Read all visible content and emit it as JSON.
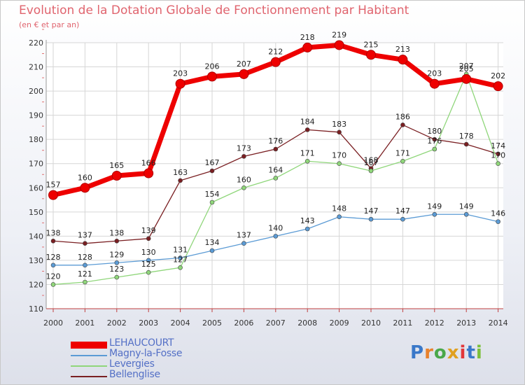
{
  "chart_data": {
    "type": "line",
    "title": "Evolution de la Dotation Globale de Fonctionnement par Habitant",
    "subtitle": "(en € et par an)",
    "categories": [
      "2000",
      "2001",
      "2002",
      "2003",
      "2004",
      "2005",
      "2006",
      "2007",
      "2008",
      "2009",
      "2010",
      "2011",
      "2012",
      "2013",
      "2014"
    ],
    "ylim": [
      110,
      220
    ],
    "yticks": [
      110,
      120,
      130,
      140,
      150,
      160,
      170,
      180,
      190,
      200,
      210,
      220
    ],
    "grid": true,
    "legend_position": "bottom-left",
    "series": [
      {
        "name": "Bellenglise",
        "color": "#7a1f22",
        "values": [
          138,
          137,
          138,
          139,
          163,
          167,
          173,
          176,
          184,
          183,
          168,
          186,
          180,
          178,
          174
        ]
      },
      {
        "name": "Levergies",
        "color": "#8fd67a",
        "values": [
          120,
          121,
          123,
          125,
          127,
          154,
          160,
          164,
          171,
          170,
          167,
          171,
          176,
          207,
          170
        ]
      },
      {
        "name": "Magny-la-Fosse",
        "color": "#5b9bd5",
        "values": [
          128,
          128,
          129,
          130,
          131,
          134,
          137,
          140,
          143,
          148,
          147,
          147,
          149,
          149,
          146
        ]
      },
      {
        "name": "LEHAUCOURT",
        "color": "#ee0000",
        "values": [
          157,
          160,
          165,
          166,
          203,
          206,
          207,
          212,
          218,
          219,
          215,
          213,
          203,
          205,
          202
        ]
      }
    ],
    "legend_order": [
      "LEHAUCOURT",
      "Magny-la-Fosse",
      "Levergies",
      "Bellenglise"
    ]
  },
  "logo": {
    "text": "Proxiti",
    "letters": [
      "P",
      "r",
      "o",
      "x",
      "i",
      "t",
      "i"
    ]
  }
}
